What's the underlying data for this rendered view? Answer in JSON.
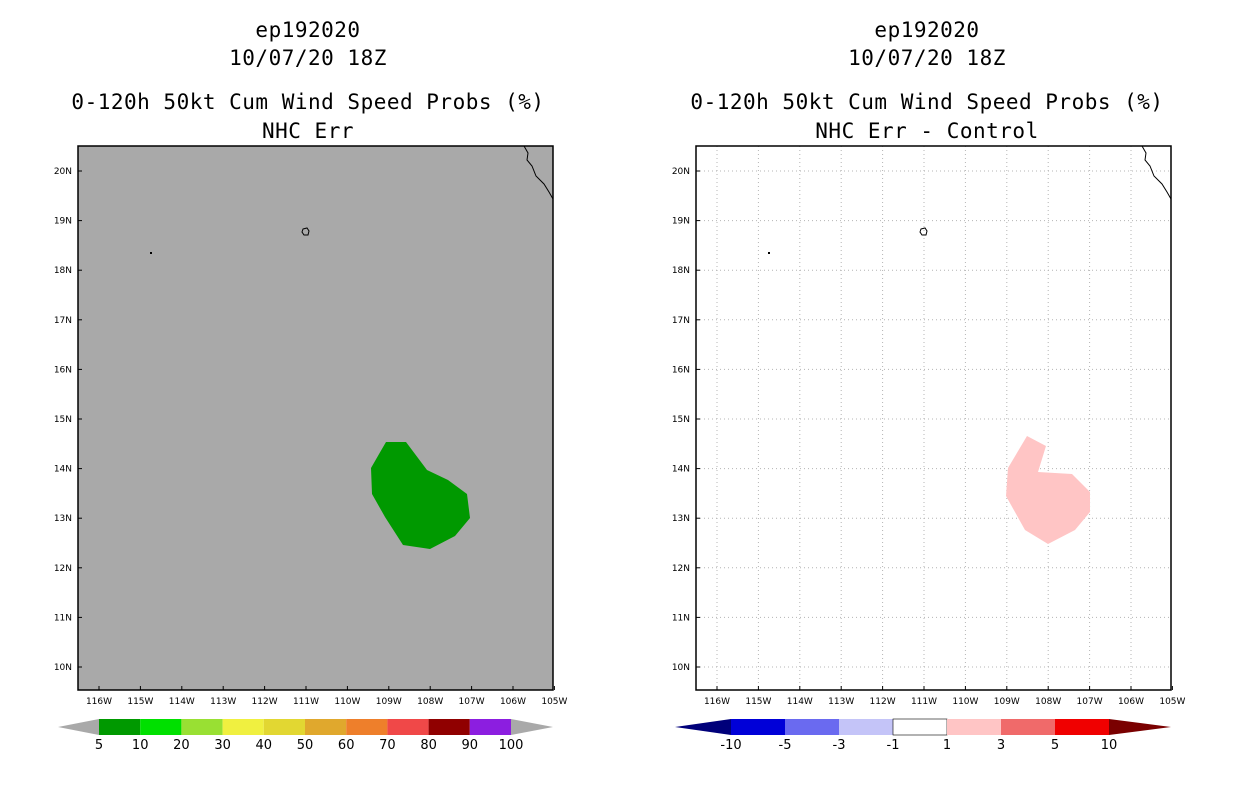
{
  "panels": [
    {
      "storm_id": "ep192020",
      "datetime": "10/07/20 18Z",
      "product": "0-120h 50kt Cum Wind Speed Probs (%)",
      "subtitle": "NHC Err",
      "map_background": "#a9a9a9",
      "grid": false,
      "lat_labels": [
        "20N",
        "19N",
        "18N",
        "17N",
        "16N",
        "15N",
        "14N",
        "13N",
        "12N",
        "11N",
        "10N"
      ],
      "lon_labels": [
        "116W",
        "115W",
        "114W",
        "113W",
        "112W",
        "111W",
        "110W",
        "109W",
        "108W",
        "107W",
        "106W",
        "105W"
      ],
      "shaded_region": {
        "color": "#009900",
        "category": "5-10"
      },
      "colorbar": {
        "labels": [
          "5",
          "10",
          "20",
          "30",
          "40",
          "50",
          "60",
          "70",
          "80",
          "90",
          "100"
        ],
        "colors": [
          "#009900",
          "#00e000",
          "#99e033",
          "#f0f040",
          "#e2d732",
          "#e0a82d",
          "#ee7f2b",
          "#f04848",
          "#900000",
          "#8c1ee0"
        ],
        "under_color": "#a9a9a9",
        "over_color": "#a9a9a9"
      }
    },
    {
      "storm_id": "ep192020",
      "datetime": "10/07/20 18Z",
      "product": "0-120h 50kt Cum Wind Speed Probs (%)",
      "subtitle": "NHC Err - Control",
      "map_background": "#ffffff",
      "grid": true,
      "lat_labels": [
        "20N",
        "19N",
        "18N",
        "17N",
        "16N",
        "15N",
        "14N",
        "13N",
        "12N",
        "11N",
        "10N"
      ],
      "lon_labels": [
        "116W",
        "115W",
        "114W",
        "113W",
        "112W",
        "111W",
        "110W",
        "109W",
        "108W",
        "107W",
        "106W",
        "105W"
      ],
      "shaded_region": {
        "color": "#ffc5c5",
        "category": "1-3"
      },
      "colorbar": {
        "labels": [
          "-10",
          "-5",
          "-3",
          "-1",
          "1",
          "3",
          "5",
          "10"
        ],
        "colors": [
          "#0000d8",
          "#6a6af0",
          "#c4c4f8",
          "#ffffff",
          "#ffc5c5",
          "#f06a6a",
          "#f00000"
        ],
        "under_color": "#00007a",
        "over_color": "#7a0000"
      }
    }
  ]
}
